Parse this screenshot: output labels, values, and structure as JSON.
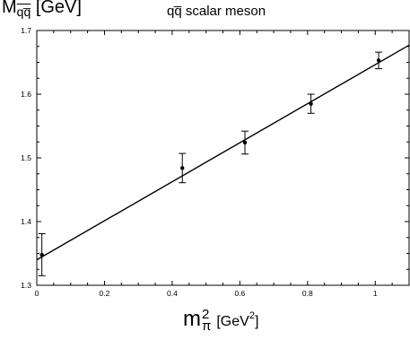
{
  "chart_data": {
    "type": "scatter",
    "title": "qq̅ scalar meson",
    "ylabel": {
      "base": "M",
      "sub": "qq̅",
      "unit": "[GeV]"
    },
    "xlabel": {
      "base": "m",
      "sup": "2",
      "sub": "π",
      "unit_pre": "[GeV",
      "unit_sup": "2",
      "unit_post": "]"
    },
    "xlim": [
      0,
      1.1
    ],
    "ylim": [
      1.3,
      1.7
    ],
    "x_ticks": [
      0,
      0.2,
      0.4,
      0.6,
      0.8,
      1
    ],
    "x_tick_labels": [
      "0",
      "0.2",
      "0.4",
      "0.6",
      "0.8",
      "1"
    ],
    "y_ticks": [
      1.3,
      1.4,
      1.5,
      1.6,
      1.7
    ],
    "y_tick_labels": [
      "1.3",
      "1.4",
      "1.5",
      "1.6",
      "1.7"
    ],
    "points": [
      {
        "x": 0.015,
        "y": 1.348,
        "err": 0.033
      },
      {
        "x": 0.43,
        "y": 1.484,
        "err": 0.023
      },
      {
        "x": 0.615,
        "y": 1.524,
        "err": 0.018
      },
      {
        "x": 0.81,
        "y": 1.585,
        "err": 0.015
      },
      {
        "x": 1.01,
        "y": 1.653,
        "err": 0.013
      }
    ],
    "fit_line": {
      "x": [
        0,
        1.1
      ],
      "y": [
        1.34,
        1.677
      ]
    },
    "grid": false,
    "legend": "none"
  }
}
